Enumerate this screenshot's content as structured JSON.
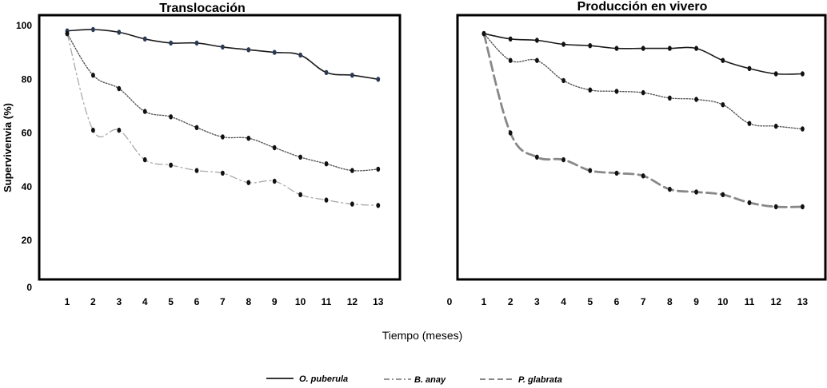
{
  "chart_data": [
    {
      "type": "line",
      "title": "Translocación",
      "xlabel": "Tiempo (meses)",
      "ylabel": "Supervivenvia (%)",
      "x": [
        1,
        2,
        3,
        4,
        5,
        6,
        7,
        8,
        9,
        10,
        11,
        12,
        13
      ],
      "y_ticks": [
        "100",
        "80",
        "60",
        "40",
        "20",
        "0"
      ],
      "y_tick_values": [
        100,
        80,
        60,
        40,
        20,
        0
      ],
      "x_ticks": [
        "1",
        "2",
        "3",
        "4",
        "5",
        "6",
        "7",
        "8",
        "9",
        "10",
        "11",
        "12",
        "13"
      ],
      "ylim": [
        0,
        100
      ],
      "series": [
        {
          "name": "O. puberula",
          "style": "solid",
          "color": "#1a1a1a",
          "values": [
            98,
            98.5,
            97.5,
            95,
            93.5,
            93.5,
            92,
            91,
            90,
            89,
            82.5,
            81.5,
            80
          ]
        },
        {
          "name": "B. anay",
          "style": "dotted",
          "color": "#555555",
          "values": [
            97,
            81.5,
            76.5,
            68,
            66,
            62,
            58.5,
            58,
            54.5,
            51,
            48.5,
            46,
            46.5
          ]
        },
        {
          "name": "P. glabrata",
          "style": "dashdot",
          "color": "#aaaaaa",
          "values": [
            97,
            61,
            61,
            50,
            48,
            46,
            45,
            41.5,
            42,
            37,
            35,
            33.5,
            33
          ]
        }
      ]
    },
    {
      "type": "line",
      "title": "Producción en vivero",
      "xlabel": "Tiempo (meses)",
      "ylabel": "Supervivenvia (%)",
      "x": [
        1,
        2,
        3,
        4,
        5,
        6,
        7,
        8,
        9,
        10,
        11,
        12,
        13
      ],
      "x_ticks": [
        "0",
        "1",
        "2",
        "3",
        "4",
        "5",
        "6",
        "7",
        "8",
        "9",
        "10",
        "11",
        "12",
        "13"
      ],
      "ylim": [
        0,
        100
      ],
      "series": [
        {
          "name": "O. puberula",
          "style": "solid",
          "color": "#1a1a1a",
          "values": [
            97,
            95,
            94.5,
            93,
            92.5,
            91.5,
            91.5,
            91.5,
            91.5,
            87,
            84,
            82,
            82
          ]
        },
        {
          "name": "B. anay",
          "style": "dotted",
          "color": "#555555",
          "values": [
            97,
            87,
            87,
            79.5,
            76,
            75.5,
            75,
            73,
            72.5,
            70.5,
            63.5,
            62.5,
            61.5
          ]
        },
        {
          "name": "P. glabrata",
          "style": "dashed",
          "color": "#888888",
          "values": [
            97,
            60,
            51,
            50,
            46,
            45,
            44,
            39,
            38,
            37,
            34,
            32.5,
            32.5
          ]
        }
      ]
    }
  ],
  "legend": [
    {
      "label": "O. puberula",
      "style": "solid",
      "color": "#1a1a1a"
    },
    {
      "label": "B. anay",
      "style": "dashdot",
      "color": "#888888"
    },
    {
      "label": "P. glabrata",
      "style": "dashed",
      "color": "#888888"
    }
  ]
}
